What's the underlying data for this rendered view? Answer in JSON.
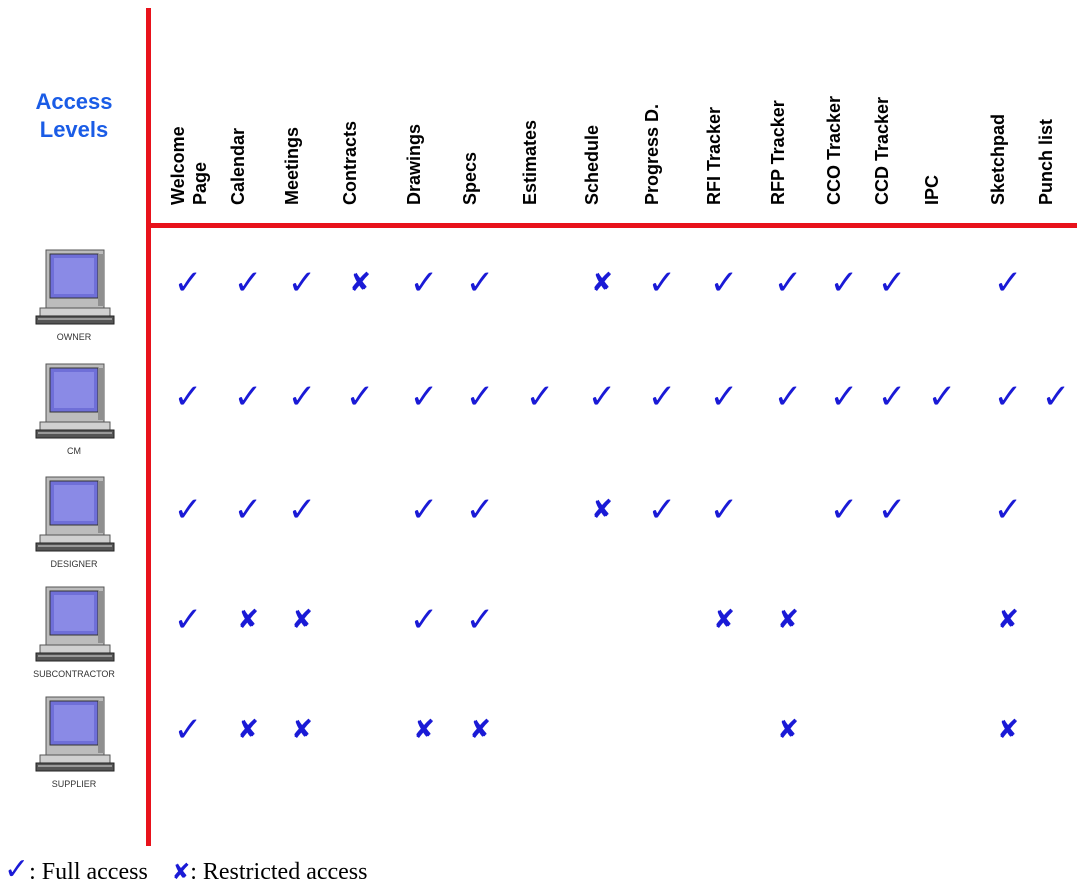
{
  "title": {
    "line1": "Access",
    "line2": "Levels"
  },
  "columns": [
    "Welcome\nPage",
    "Calendar",
    "Meetings",
    "Contracts",
    "Drawings",
    "Specs",
    "Estimates",
    "Schedule",
    "Progress  D.",
    "RFI Tracker",
    "RFP Tracker",
    "CCO  Tracker",
    "CCD Tracker",
    "IPC",
    "Sketchpad",
    "Punch list"
  ],
  "roles": [
    {
      "label": "OWNER",
      "cells": [
        "full",
        "full",
        "full",
        "restricted",
        "full",
        "full",
        "",
        "restricted",
        "full",
        "full",
        "full",
        "full",
        "full",
        "",
        "full",
        ""
      ]
    },
    {
      "label": "CM",
      "cells": [
        "full",
        "full",
        "full",
        "full",
        "full",
        "full",
        "full",
        "full",
        "full",
        "full",
        "full",
        "full",
        "full",
        "full",
        "full",
        "full"
      ]
    },
    {
      "label": "DESIGNER",
      "cells": [
        "full",
        "full",
        "full",
        "",
        "full",
        "full",
        "",
        "restricted",
        "full",
        "full",
        "",
        "full",
        "full",
        "",
        "full",
        ""
      ]
    },
    {
      "label": "SUBCONTRACTOR",
      "cells": [
        "full",
        "restricted",
        "restricted",
        "",
        "full",
        "full",
        "",
        "",
        "",
        "restricted",
        "restricted",
        "",
        "",
        "",
        "restricted",
        ""
      ]
    },
    {
      "label": "SUPPLIER",
      "cells": [
        "full",
        "restricted",
        "restricted",
        "",
        "restricted",
        "restricted",
        "",
        "",
        "",
        "",
        "restricted",
        "",
        "",
        "",
        "restricted",
        ""
      ]
    }
  ],
  "symbols": {
    "full": "✓",
    "restricted": "✘"
  },
  "legend": {
    "full_symbol": "✓",
    "full_text": ": Full access",
    "restricted_symbol": "✘",
    "restricted_text": ":  Restricted access"
  },
  "colors": {
    "accent_line": "#e8121b",
    "title": "#1a5ce6",
    "mark": "#1a1ad6"
  }
}
